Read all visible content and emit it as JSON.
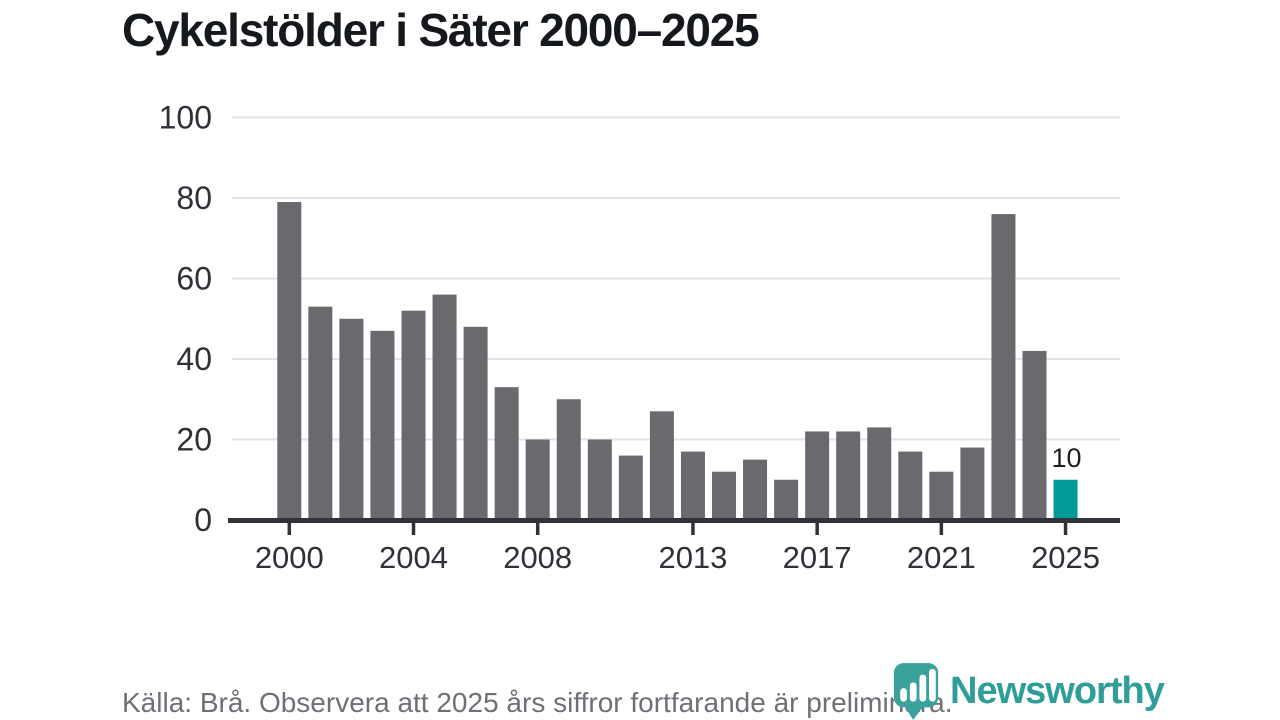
{
  "title": "Cykelstölder i Säter 2000–2025",
  "chart_data": {
    "type": "bar",
    "title": "Cykelstölder i Säter 2000–2025",
    "categories": [
      2000,
      2001,
      2002,
      2003,
      2004,
      2005,
      2006,
      2007,
      2008,
      2009,
      2010,
      2011,
      2012,
      2013,
      2014,
      2015,
      2016,
      2017,
      2018,
      2019,
      2020,
      2021,
      2022,
      2023,
      2024,
      2025
    ],
    "values": [
      79,
      53,
      50,
      47,
      52,
      56,
      48,
      33,
      20,
      30,
      20,
      16,
      27,
      17,
      12,
      15,
      10,
      22,
      22,
      23,
      17,
      12,
      18,
      76,
      42,
      10
    ],
    "highlight_year": 2025,
    "value_label": {
      "year": 2025,
      "text": "10"
    },
    "xticks": [
      2000,
      2004,
      2008,
      2013,
      2017,
      2021,
      2025
    ],
    "yticks": [
      0,
      20,
      40,
      60,
      80,
      100
    ],
    "ylim": [
      0,
      100
    ],
    "grid": "horizontal",
    "legend": "none",
    "colors": {
      "bar": "#69696e",
      "highlight": "#009a98",
      "gridline": "#e3e3e5",
      "axis": "#2f3237",
      "tick_label": "#2e3137",
      "value_label": "#1c1e21"
    }
  },
  "footer": {
    "source_note": "Källa: Brå. Observera att 2025 års siffror fortfarande är preliminära."
  },
  "logo": {
    "brand": "Newsworthy",
    "icon": "bar-chart-bubble-icon",
    "color": "#2f9e99",
    "icon_color": "#3aa19b"
  }
}
